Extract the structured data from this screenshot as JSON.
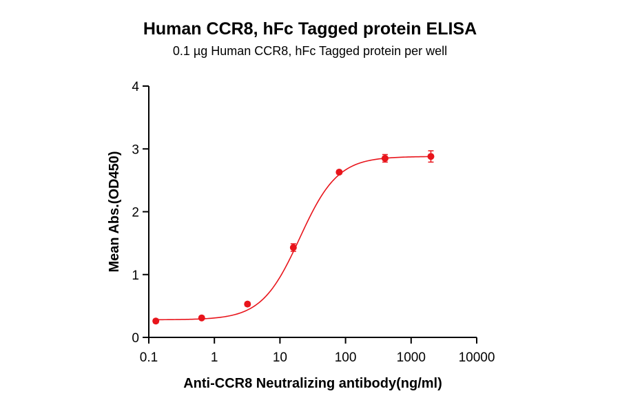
{
  "chart_data": {
    "type": "scatter",
    "title": "Human CCR8, hFc Tagged protein ELISA",
    "subtitle": "0.1 µg Human CCR8, hFc Tagged protein per well",
    "xlabel": "Anti-CCR8 Neutralizing antibody(ng/ml)",
    "ylabel": "Mean Abs.(OD450)",
    "x_scale": "log",
    "xlim": [
      0.1,
      10000
    ],
    "ylim": [
      0,
      4
    ],
    "x_ticks": [
      0.1,
      1,
      10,
      100,
      1000,
      10000
    ],
    "x_tick_labels": [
      "0.1",
      "1",
      "10",
      "100",
      "1000",
      "10000"
    ],
    "y_ticks": [
      0,
      1,
      2,
      3,
      4
    ],
    "y_tick_labels": [
      "0",
      "1",
      "2",
      "3",
      "4"
    ],
    "color": "#e8141b",
    "grid": false,
    "points": [
      {
        "x": 0.128,
        "y": 0.26,
        "err": 0.03
      },
      {
        "x": 0.64,
        "y": 0.31,
        "err": 0.02
      },
      {
        "x": 3.2,
        "y": 0.53,
        "err": 0.03
      },
      {
        "x": 16,
        "y": 1.43,
        "err": 0.06
      },
      {
        "x": 80,
        "y": 2.63,
        "err": 0.03
      },
      {
        "x": 400,
        "y": 2.85,
        "err": 0.06
      },
      {
        "x": 2000,
        "y": 2.88,
        "err": 0.09
      }
    ],
    "fit": {
      "bottom": 0.28,
      "top": 2.88,
      "ec50": 20,
      "hill": 1.5
    }
  }
}
